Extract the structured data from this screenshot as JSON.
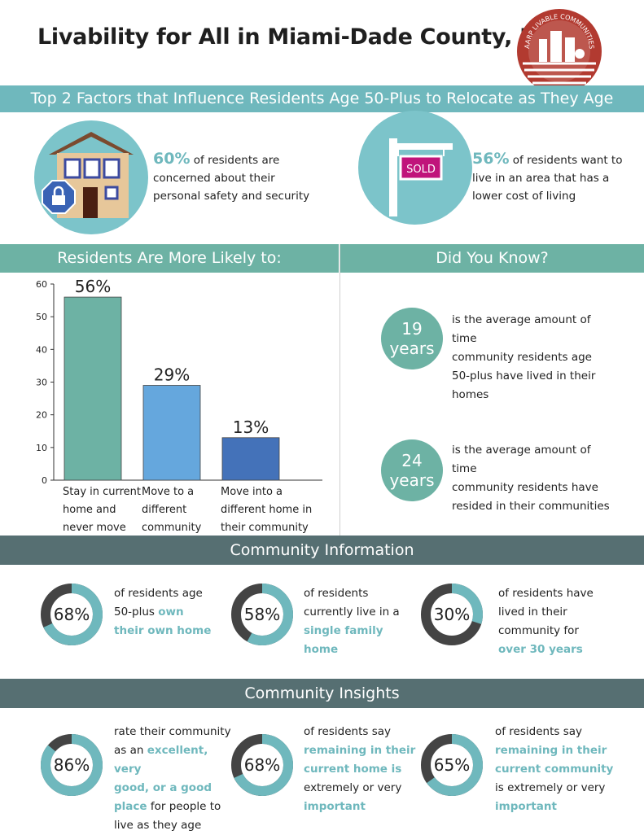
{
  "title": "Livability for All in Miami-Dade County, FL",
  "logo_text": "AARP LIVABLE COMMUNITIES",
  "colors": {
    "teal": "#6fb8bd",
    "green": "#6db2a4",
    "dark": "#566f72",
    "bar1": "#6db2a4",
    "bar2": "#65a7dd",
    "bar3": "#4472b9",
    "ring": "#444444"
  },
  "factors": {
    "heading": "Top 2 Factors that Influence Residents Age 50-Plus to Relocate as They Age",
    "items": [
      {
        "pct": "60%",
        "text_a": " of residents are",
        "text_b": "concerned about their",
        "text_c": "personal safety and security",
        "icon": "house-lock-icon"
      },
      {
        "pct": "56%",
        "text_a": " of residents want to",
        "text_b": "live in an area that has a",
        "text_c": "lower cost of living",
        "icon": "sold-sign-icon",
        "sign": "SOLD"
      }
    ]
  },
  "likely": {
    "heading": "Residents Are More Likely to:"
  },
  "chart_data": {
    "type": "bar",
    "categories": [
      "Stay in current home and never move",
      "Move to a different community",
      "Move into a different home in their community"
    ],
    "category_lines": [
      [
        "Stay in current",
        "home and",
        "never move"
      ],
      [
        "Move to a",
        "different",
        "community"
      ],
      [
        "Move into a",
        "different home in",
        "their community"
      ]
    ],
    "values": [
      56,
      29,
      13
    ],
    "data_labels": [
      "56%",
      "29%",
      "13%"
    ],
    "ylim": [
      0,
      60
    ],
    "yticks": [
      0,
      10,
      20,
      30,
      40,
      50,
      60
    ],
    "grid": false
  },
  "know": {
    "heading": "Did You Know?",
    "items": [
      {
        "num": "19",
        "unit": "years",
        "lines": [
          "is the average amount of time",
          "community residents age",
          "50-plus have lived in their",
          "homes"
        ]
      },
      {
        "num": "24",
        "unit": "years",
        "lines": [
          "is the average amount of time",
          "community residents have",
          "resided in their communities"
        ]
      }
    ]
  },
  "info": {
    "heading": "Community Information",
    "items": [
      {
        "pct": "68%",
        "value": 0.68,
        "l1": "of residents age",
        "l2a": "50-plus ",
        "l2b": "own",
        "l3": "their own home",
        "l4": ""
      },
      {
        "pct": "58%",
        "value": 0.58,
        "l1": "of residents",
        "l2a": "currently live in a",
        "l2b": "",
        "l3": "single family",
        "l4": "home"
      },
      {
        "pct": "30%",
        "value": 0.3,
        "l1": "of residents have",
        "l2a": "lived in their",
        "l2b": "",
        "l3": "community for",
        "l4": "over 30 years"
      }
    ]
  },
  "insights": {
    "heading": "Community Insights",
    "items": [
      {
        "pct": "86%",
        "value": 0.86
      },
      {
        "pct": "68%",
        "value": 0.68
      },
      {
        "pct": "65%",
        "value": 0.65
      }
    ],
    "t1": {
      "a": "rate their community",
      "b": "as an ",
      "c": "excellent, very",
      "d": "good, or a good",
      "e": "place",
      "f": " for people to",
      "g": "live as they age"
    },
    "t2": {
      "a": "of residents say",
      "b": "remaining in their",
      "c": "current home is",
      "d": "extremely or very",
      "e": "important"
    },
    "t3": {
      "a": "of residents say",
      "b": "remaining in their",
      "c": "current community",
      "d": "is extremely or very",
      "e": "important"
    }
  }
}
